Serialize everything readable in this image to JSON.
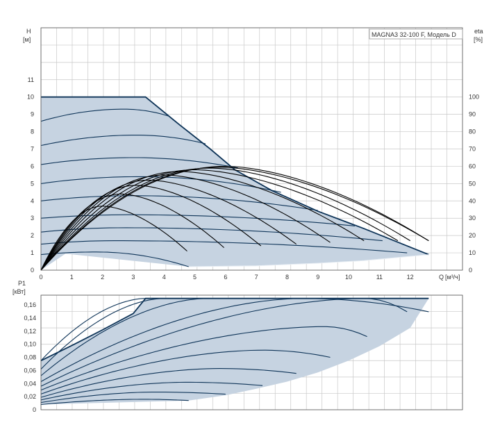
{
  "title": "MAGNA3 32-100 F, Модель D",
  "colors": {
    "area": "#c6d3e1",
    "curve": "#0d3357",
    "grid": "#c8c8c8",
    "eta": "#000000"
  },
  "chart_data": [
    {
      "type": "line",
      "name": "head",
      "ylabel_top": "H",
      "ylabel_unit": "[м]",
      "y2label_top": "eta",
      "y2label_unit": "[%]",
      "xlabel": "Q",
      "xlabel_unit": "[м³/ч]",
      "xlim": [
        0,
        13.7
      ],
      "ylim": [
        0,
        14
      ],
      "y2lim": [
        0,
        140
      ],
      "x_ticks": [
        0,
        1,
        2,
        3,
        4,
        5,
        6,
        7,
        8,
        9,
        10,
        11,
        12
      ],
      "y_ticks": [
        0,
        1,
        2,
        3,
        4,
        5,
        6,
        7,
        8,
        9,
        10,
        11
      ],
      "y2_ticks": [
        0,
        10,
        20,
        30,
        40,
        50,
        60,
        70,
        80,
        90,
        100
      ],
      "grid": true,
      "max_curve": [
        [
          0,
          10
        ],
        [
          3.4,
          10
        ],
        [
          4.5,
          8.4
        ],
        [
          5.5,
          7.0
        ],
        [
          6.3,
          5.8
        ],
        [
          7.5,
          4.6
        ],
        [
          9,
          3.4
        ],
        [
          10.5,
          2.4
        ],
        [
          12.6,
          0.9
        ]
      ],
      "min_curve": [
        [
          4.8,
          0.2
        ],
        [
          7,
          0.25
        ],
        [
          9,
          0.4
        ],
        [
          10.5,
          0.55
        ],
        [
          12.6,
          0.9
        ]
      ],
      "speed_curves": [
        {
          "h0": 8.6,
          "hmax": 9.3,
          "xmax": 2.7,
          "x_end": 4.15,
          "h_end": 8.9
        },
        {
          "h0": 7.2,
          "hmax": 7.8,
          "xmax": 3.1,
          "x_end": 5.35,
          "h_end": 7.3
        },
        {
          "h0": 6.1,
          "hmax": 6.5,
          "xmax": 3.0,
          "x_end": 6.4,
          "h_end": 5.9
        },
        {
          "h0": 5.0,
          "hmax": 5.4,
          "xmax": 3.2,
          "x_end": 7.8,
          "h_end": 4.5
        },
        {
          "h0": 4.0,
          "hmax": 4.3,
          "xmax": 3.0,
          "x_end": 9.0,
          "h_end": 3.45
        },
        {
          "h0": 3.0,
          "hmax": 3.2,
          "xmax": 2.9,
          "x_end": 10.2,
          "h_end": 2.55
        },
        {
          "h0": 2.2,
          "hmax": 2.45,
          "xmax": 2.7,
          "x_end": 11.1,
          "h_end": 1.7
        },
        {
          "h0": 1.5,
          "hmax": 1.7,
          "xmax": 2.4,
          "x_end": 11.9,
          "h_end": 1.0
        },
        {
          "h0": 0.9,
          "hmax": 1.05,
          "xmax": 1.8,
          "x_end": 4.8,
          "h_end": 0.2
        }
      ],
      "eta_curves": [
        {
          "peak": 37,
          "xpeak": 2.0,
          "x_end": 4.75,
          "eta_end": 11
        },
        {
          "peak": 44,
          "xpeak": 2.6,
          "x_end": 5.95,
          "eta_end": 13
        },
        {
          "peak": 49,
          "xpeak": 3.1,
          "x_end": 7.15,
          "eta_end": 14
        },
        {
          "peak": 52,
          "xpeak": 3.5,
          "x_end": 8.3,
          "eta_end": 15
        },
        {
          "peak": 55,
          "xpeak": 4.0,
          "x_end": 9.4,
          "eta_end": 16
        },
        {
          "peak": 57,
          "xpeak": 4.5,
          "x_end": 10.5,
          "eta_end": 17
        },
        {
          "peak": 58,
          "xpeak": 5.0,
          "x_end": 11.6,
          "eta_end": 17
        },
        {
          "peak": 59,
          "xpeak": 5.5,
          "x_end": 12.0,
          "eta_end": 17
        },
        {
          "peak": 59.5,
          "xpeak": 5.8,
          "x_end": 12.6,
          "eta_end": 17
        },
        {
          "peak": 60,
          "xpeak": 6.0,
          "x_end": 12.6,
          "eta_end": 17
        }
      ]
    },
    {
      "type": "line",
      "name": "power",
      "ylabel_top": "P1",
      "ylabel_unit": "[кВт]",
      "xlim": [
        0,
        13.7
      ],
      "ylim": [
        0,
        0.175
      ],
      "y_ticks": [
        0,
        0.02,
        0.04,
        0.06,
        0.08,
        0.1,
        0.12,
        0.14,
        0.16
      ],
      "y_tick_labels": [
        "0",
        "0,02",
        "0,04",
        "0,06",
        "0,08",
        "0,10",
        "0,12",
        "0,14",
        "0,16"
      ],
      "grid": true,
      "max_curve": [
        [
          0,
          0.075
        ],
        [
          1,
          0.098
        ],
        [
          2,
          0.122
        ],
        [
          3,
          0.147
        ],
        [
          3.4,
          0.17
        ],
        [
          12.6,
          0.17
        ]
      ],
      "min_curve": [
        [
          4.8,
          0.014
        ],
        [
          6,
          0.022
        ],
        [
          7,
          0.032
        ],
        [
          8,
          0.043
        ],
        [
          9,
          0.057
        ],
        [
          10,
          0.075
        ],
        [
          11,
          0.097
        ],
        [
          12,
          0.125
        ],
        [
          12.6,
          0.17
        ]
      ],
      "speed_curves": [
        {
          "p0": 0.075,
          "pmax": 0.17,
          "xmax": 3.4,
          "x_end": 3.4
        },
        {
          "p0": 0.062,
          "pmax": 0.17,
          "xmax": 4.0,
          "x_end": 4.0
        },
        {
          "p0": 0.052,
          "pmax": 0.17,
          "xmax": 5.4,
          "x_end": 5.4
        },
        {
          "p0": 0.043,
          "pmax": 0.17,
          "xmax": 8.5,
          "x_end": 12.6
        },
        {
          "p0": 0.036,
          "pmax": 0.17,
          "xmax": 10.5,
          "x_end": 11.9
        },
        {
          "p0": 0.03,
          "pmax": 0.127,
          "xmax": 9.2,
          "x_end": 10.6
        },
        {
          "p0": 0.024,
          "pmax": 0.091,
          "xmax": 7.2,
          "x_end": 9.4
        },
        {
          "p0": 0.019,
          "pmax": 0.063,
          "xmax": 5.8,
          "x_end": 8.3
        },
        {
          "p0": 0.015,
          "pmax": 0.042,
          "xmax": 4.7,
          "x_end": 7.2
        },
        {
          "p0": 0.011,
          "pmax": 0.027,
          "xmax": 3.7,
          "x_end": 6.0
        },
        {
          "p0": 0.008,
          "pmax": 0.016,
          "xmax": 3.3,
          "x_end": 4.8
        }
      ]
    }
  ]
}
